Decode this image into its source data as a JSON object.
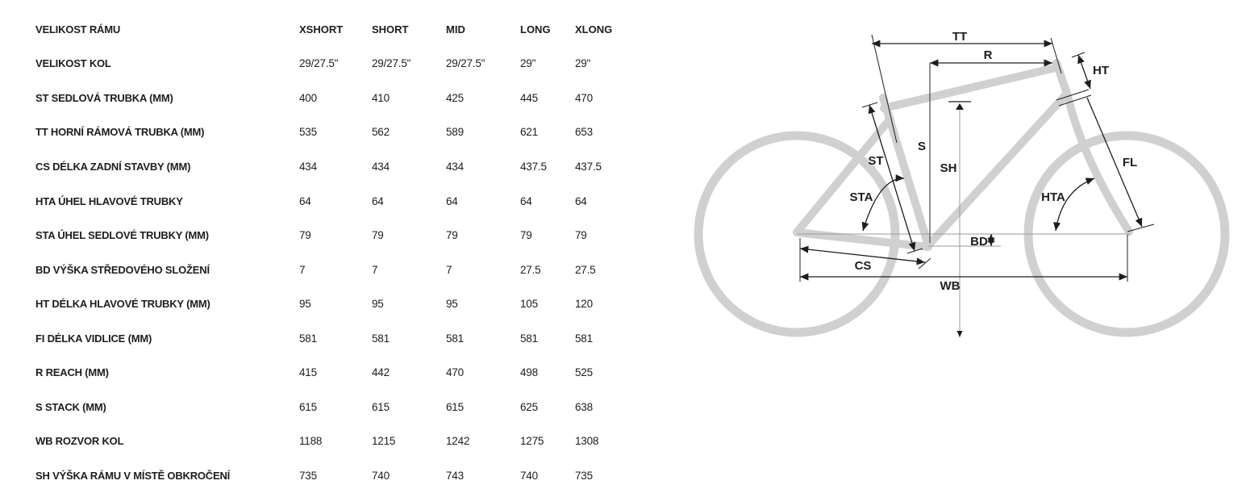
{
  "table": {
    "header": {
      "label": "VELIKOST RÁMU",
      "columns": [
        "XSHORT",
        "SHORT",
        "MID",
        "LONG",
        "XLONG"
      ]
    },
    "rows": [
      {
        "label": "VELIKOST KOL",
        "values": [
          "29/27.5\"",
          "29/27.5\"",
          "29/27.5\"",
          "29\"",
          "29\""
        ]
      },
      {
        "label": "ST SEDLOVÁ TRUBKA (MM)",
        "values": [
          "400",
          "410",
          "425",
          "445",
          "470"
        ]
      },
      {
        "label": "TT HORNÍ RÁMOVÁ TRUBKA (MM)",
        "values": [
          "535",
          "562",
          "589",
          "621",
          "653"
        ]
      },
      {
        "label": "CS DÉLKA ZADNÍ STAVBY (MM)",
        "values": [
          "434",
          "434",
          "434",
          "437.5",
          "437.5"
        ]
      },
      {
        "label": "HTA ÚHEL HLAVOVÉ TRUBKY",
        "values": [
          "64",
          "64",
          "64",
          "64",
          "64"
        ]
      },
      {
        "label": "STA ÚHEL SEDLOVÉ TRUBKY (MM)",
        "values": [
          "79",
          "79",
          "79",
          "79",
          "79"
        ]
      },
      {
        "label": "BD VÝŠKA STŘEDOVÉHO SLOŽENÍ",
        "values": [
          "7",
          "7",
          "7",
          "27.5",
          "27.5"
        ]
      },
      {
        "label": "HT DÉLKA HLAVOVÉ TRUBKY (MM)",
        "values": [
          "95",
          "95",
          "95",
          "105",
          "120"
        ]
      },
      {
        "label": "FI DÉLKA VIDLICE (MM)",
        "values": [
          "581",
          "581",
          "581",
          "581",
          "581"
        ]
      },
      {
        "label": "R REACH (MM)",
        "values": [
          "415",
          "442",
          "470",
          "498",
          "525"
        ]
      },
      {
        "label": "S STACK (MM)",
        "values": [
          "615",
          "615",
          "615",
          "625",
          "638"
        ]
      },
      {
        "label": "WB ROZVOR KOL",
        "values": [
          "1188",
          "1215",
          "1242",
          "1275",
          "1308"
        ]
      },
      {
        "label": "SH VÝŠKA RÁMU V MÍSTĚ OBKROČENÍ",
        "values": [
          "735",
          "740",
          "743",
          "740",
          "735"
        ]
      }
    ]
  },
  "diagram": {
    "labels": {
      "tt": "TT",
      "r": "R",
      "ht": "HT",
      "st": "ST",
      "s": "S",
      "sh": "SH",
      "sta": "STA",
      "hta": "HTA",
      "fl": "FL",
      "bd": "BD",
      "cs": "CS",
      "wb": "WB"
    },
    "colors": {
      "frame": "#d0d0d0",
      "dimension": "#1d1d1b",
      "guide": "#9a9a9a",
      "stack_line": "#555555"
    }
  }
}
